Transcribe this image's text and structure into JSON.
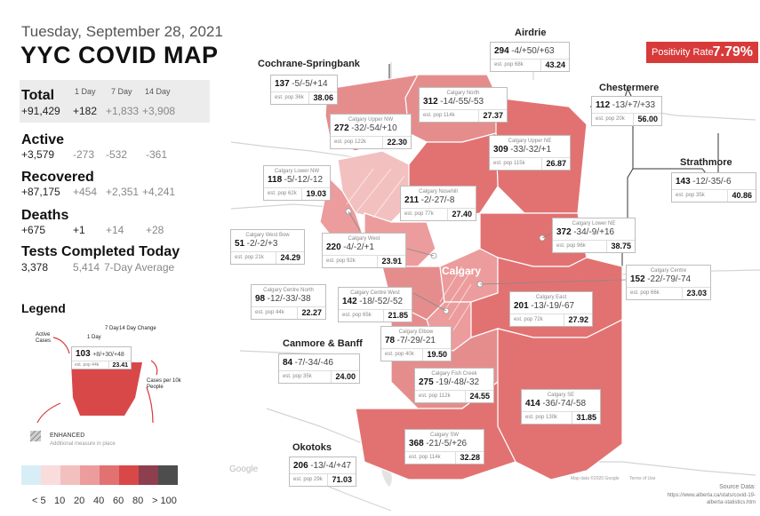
{
  "header": {
    "date": "Tuesday, September 28, 2021",
    "title": "YYC COVID MAP"
  },
  "stats": {
    "col_headers": {
      "d1": "1 Day",
      "d7": "7 Day",
      "d14": "14 Day"
    },
    "total": {
      "label": "Total",
      "main": "+91,429",
      "d1": "+182",
      "d7": "+1,833",
      "d14": "+3,908"
    },
    "active": {
      "label": "Active",
      "main": "+3,579",
      "d1": "-273",
      "d7": "-532",
      "d14": "-361"
    },
    "recovered": {
      "label": "Recovered",
      "main": "+87,175",
      "d1": "+454",
      "d7": "+2,351",
      "d14": "+4,241"
    },
    "deaths": {
      "label": "Deaths",
      "main": "+675",
      "d1": "+1",
      "d7": "+14",
      "d14": "+28"
    },
    "tests": {
      "label": "Tests Completed Today",
      "main": "3,378",
      "avg_value": "5,414",
      "avg_label": "7-Day Average"
    }
  },
  "legend": {
    "title": "Legend",
    "hdr_1day": "1 Day",
    "hdr_7day": "7 Day",
    "hdr_14day": "14 Day Change",
    "active_cases": "Active Cases",
    "sample_cases": "103",
    "sample_chg": "+8/+30/+48",
    "sample_pop": "est. pop 44k",
    "sample_rate": "23.41",
    "cases_per": "Cases per 10k People",
    "enhanced": "ENHANCED",
    "enhanced_sub": "Additional measure in place",
    "scale_ticks": [
      "< 5",
      "10",
      "20",
      "40",
      "60",
      "80",
      "> 100"
    ],
    "scale_colors": [
      "#d8eef6",
      "#f9dcdc",
      "#f3c0c0",
      "#ec9c9c",
      "#e27272",
      "#d94848",
      "#8e3f4f",
      "#4d4d4d"
    ]
  },
  "positivity": {
    "label": "Positivity Rate",
    "value": "7.79%"
  },
  "map": {
    "city_label": "Calgary",
    "source_label": "Source Data:",
    "source_url": "https://www.alberta.ca/stats/covid-19-alberta-statistics.htm",
    "terms": "Terms of Use",
    "map_data": "Map data ©2020 Google",
    "google": "Google"
  },
  "regions": [
    {
      "name": "",
      "title": "Airdrie",
      "cases": "294",
      "chg": "-4/+50/+63",
      "pop": "est. pop 68k",
      "rate": "43.24"
    },
    {
      "name": "",
      "title": "Cochrane-Springbank",
      "cases": "137",
      "chg": "-5/-5/+14",
      "pop": "est. pop 36k",
      "rate": "38.06"
    },
    {
      "name": "Calgary North",
      "title": "",
      "cases": "312",
      "chg": "-14/-55/-53",
      "pop": "est. pop 114k",
      "rate": "27.37"
    },
    {
      "name": "",
      "title": "Chestermere",
      "cases": "112",
      "chg": "-13/+7/+33",
      "pop": "est. pop 20k",
      "rate": "56.00"
    },
    {
      "name": "Calgary Upper NW",
      "title": "",
      "cases": "272",
      "chg": "-32/-54/+10",
      "pop": "est. pop 122k",
      "rate": "22.30"
    },
    {
      "name": "Calgary Upper NE",
      "title": "",
      "cases": "309",
      "chg": "-33/-32/+1",
      "pop": "est. pop 115k",
      "rate": "26.87"
    },
    {
      "name": "",
      "title": "Strathmore",
      "cases": "143",
      "chg": "-12/-35/-6",
      "pop": "est. pop 35k",
      "rate": "40.86"
    },
    {
      "name": "Calgary Lower NW",
      "title": "",
      "cases": "118",
      "chg": "-5/-12/-12",
      "pop": "est. pop 62k",
      "rate": "19.03"
    },
    {
      "name": "Calgary Nosehill",
      "title": "",
      "cases": "211",
      "chg": "-2/-27/-8",
      "pop": "est. pop 77k",
      "rate": "27.40"
    },
    {
      "name": "Calgary West Bow",
      "title": "",
      "cases": "51",
      "chg": "-2/-2/+3",
      "pop": "est. pop 21k",
      "rate": "24.29"
    },
    {
      "name": "Calgary West",
      "title": "",
      "cases": "220",
      "chg": "-4/-2/+1",
      "pop": "est. pop 92k",
      "rate": "23.91"
    },
    {
      "name": "Calgary Lower NE",
      "title": "",
      "cases": "372",
      "chg": "-34/-9/+16",
      "pop": "est. pop 96k",
      "rate": "38.75"
    },
    {
      "name": "Calgary Centre North",
      "title": "",
      "cases": "98",
      "chg": "-12/-33/-38",
      "pop": "est. pop 44k",
      "rate": "22.27"
    },
    {
      "name": "Calgary Centre West",
      "title": "",
      "cases": "142",
      "chg": "-18/-52/-52",
      "pop": "est. pop 65k",
      "rate": "21.85"
    },
    {
      "name": "Calgary Centre",
      "title": "",
      "cases": "152",
      "chg": "-22/-79/-74",
      "pop": "est. pop 66k",
      "rate": "23.03"
    },
    {
      "name": "Calgary East",
      "title": "",
      "cases": "201",
      "chg": "-13/-19/-67",
      "pop": "est. pop 72k",
      "rate": "27.92"
    },
    {
      "name": "Calgary Elbow",
      "title": "",
      "cases": "78",
      "chg": "-7/-29/-21",
      "pop": "est. pop 40k",
      "rate": "19.50"
    },
    {
      "name": "",
      "title": "Canmore & Banff",
      "cases": "84",
      "chg": "-7/-34/-46",
      "pop": "est. pop 35k",
      "rate": "24.00"
    },
    {
      "name": "Calgary Fish Creek",
      "title": "",
      "cases": "275",
      "chg": "-19/-48/-32",
      "pop": "est. pop 112k",
      "rate": "24.55"
    },
    {
      "name": "Calgary SE",
      "title": "",
      "cases": "414",
      "chg": "-36/-74/-58",
      "pop": "est. pop 130k",
      "rate": "31.85"
    },
    {
      "name": "Calgary SW",
      "title": "",
      "cases": "368",
      "chg": "-21/-5/+26",
      "pop": "est. pop 114k",
      "rate": "32.28"
    },
    {
      "name": "",
      "title": "Okotoks",
      "cases": "206",
      "chg": "-13/-4/+47",
      "pop": "est. pop 29k",
      "rate": "71.03"
    }
  ]
}
